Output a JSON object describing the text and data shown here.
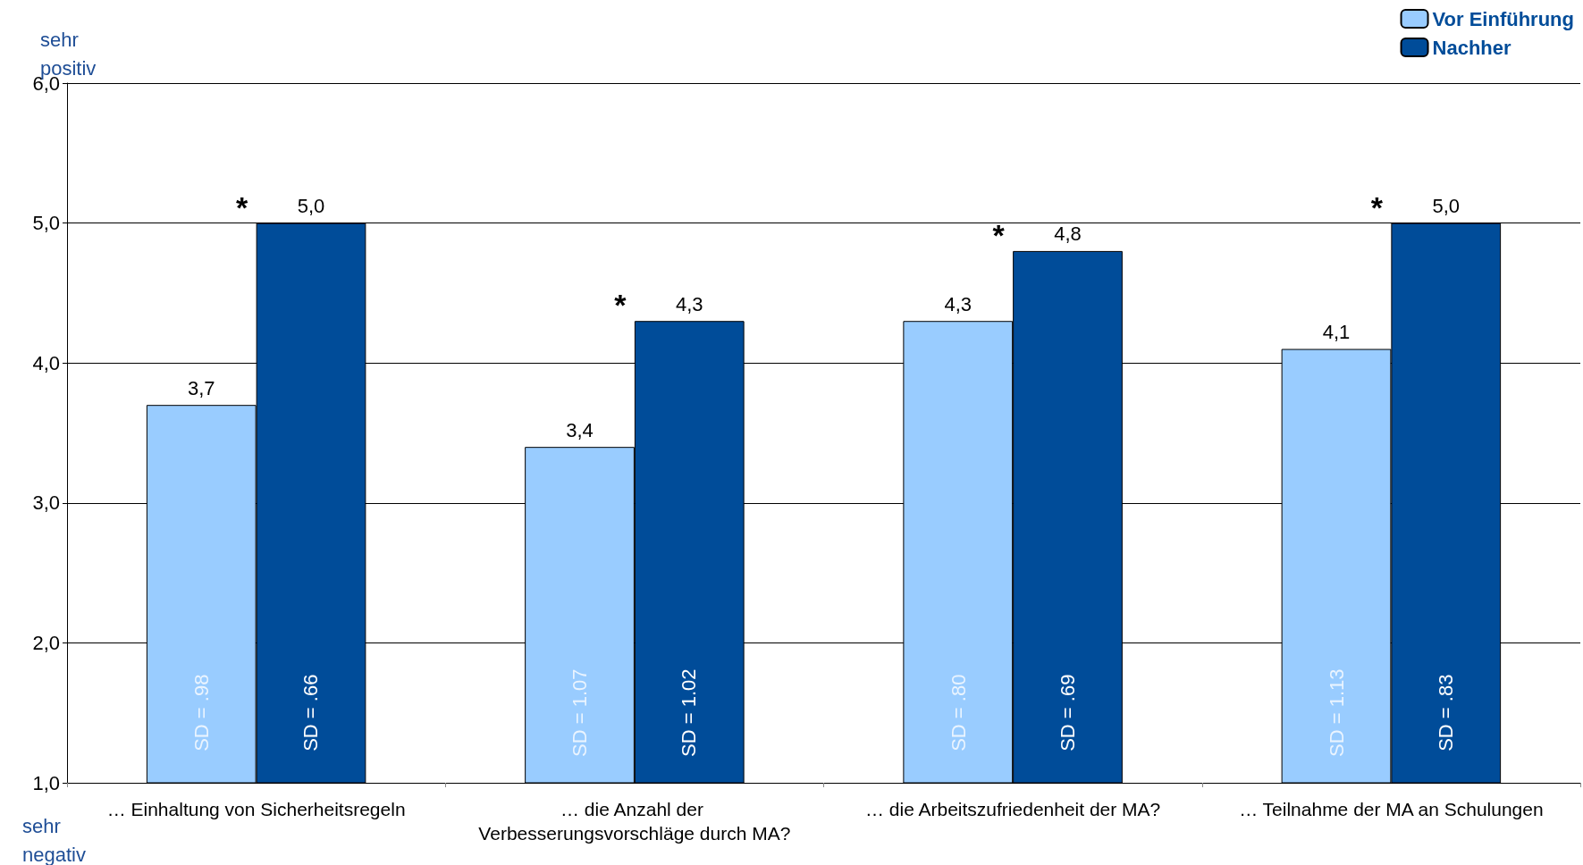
{
  "chart_data": {
    "type": "bar",
    "categories": [
      "… Einhaltung von Sicherheitsregeln",
      "… die Anzahl der Verbesserungsvorschläge durch MA?",
      "… die Arbeitszufriedenheit der MA?",
      "… Teilnahme der MA an Schulungen"
    ],
    "series": [
      {
        "name": "Vor Einführung",
        "color": "#99ccff",
        "values": [
          3.7,
          3.4,
          4.3,
          4.1
        ],
        "value_labels": [
          "3,7",
          "3,4",
          "4,3",
          "4,1"
        ]
      },
      {
        "name": "Nachher",
        "color": "#004c99",
        "values": [
          5.0,
          4.3,
          4.8,
          5.0
        ],
        "value_labels": [
          "5,0",
          "4,3",
          "4,8",
          "5,0"
        ]
      }
    ],
    "ylim": [
      1,
      6
    ],
    "yticks": [
      {
        "value": 1,
        "label": "1,0"
      },
      {
        "value": 2,
        "label": "2,0"
      },
      {
        "value": 3,
        "label": "3,0"
      },
      {
        "value": 4,
        "label": "4,0"
      },
      {
        "value": 5,
        "label": "5,0"
      },
      {
        "value": 6,
        "label": "6,0"
      }
    ],
    "grid": "y",
    "legend": "top right",
    "annotations": [
      "SD = .98",
      "SD = .66",
      "SD = 1.07",
      "SD = 1.02",
      "SD = .80",
      "SD = .69",
      "SD = 1.13",
      "SD = .83",
      "sehr positiv",
      "sehr negativ",
      "*",
      "*",
      "*",
      "*"
    ]
  }
}
